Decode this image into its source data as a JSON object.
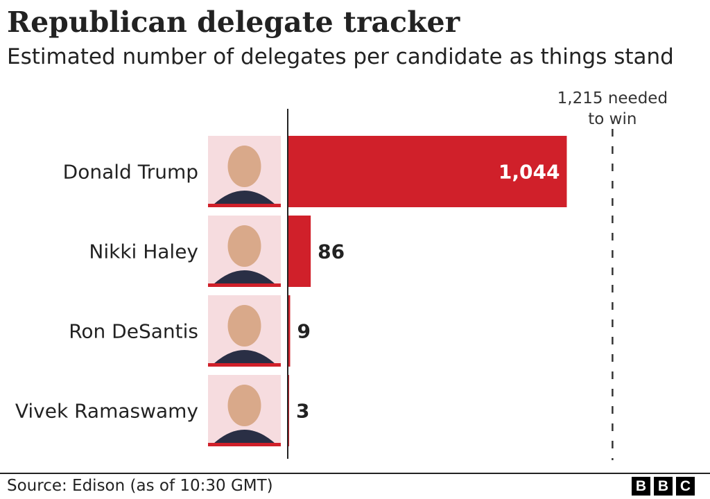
{
  "chart_data": {
    "type": "bar",
    "orientation": "horizontal",
    "title": "Republican delegate tracker",
    "subtitle": "Estimated number of delegates per candidate as things stand",
    "categories": [
      "Donald Trump",
      "Nikki Haley",
      "Ron DeSantis",
      "Vivek Ramaswamy"
    ],
    "values": [
      1044,
      86,
      9,
      3
    ],
    "value_labels": [
      "1,044",
      "86",
      "9",
      "3"
    ],
    "reference_line": {
      "value": 1215,
      "label_line1": "1,215 needed",
      "label_line2": "to win"
    },
    "xlim": [
      0,
      1215
    ],
    "grid": false,
    "legend": "none",
    "bar_color": "#d0202a",
    "source": "Source: Edison (as of 10:30 GMT)"
  },
  "brand": {
    "logo_letters": [
      "B",
      "B",
      "C"
    ]
  }
}
